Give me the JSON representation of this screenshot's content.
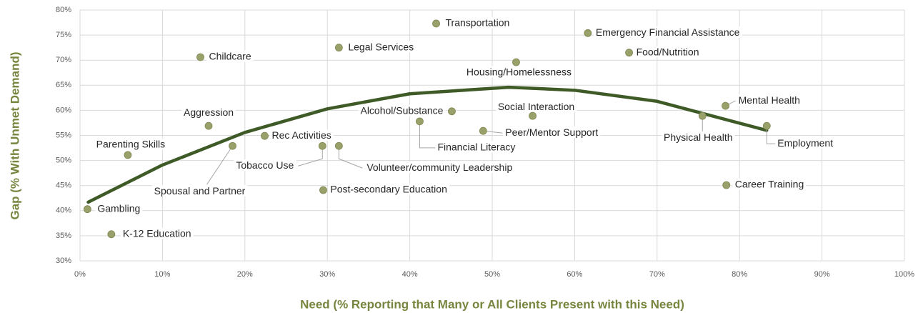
{
  "chart_data": {
    "type": "scatter",
    "x_label": "Need (% Reporting that Many or All Clients Present with this Need)",
    "y_label": "Gap (% With Unmet Demand)",
    "xlim": [
      0,
      100
    ],
    "ylim": [
      30,
      80
    ],
    "xticks": [
      {
        "value": 0,
        "label": "0%"
      },
      {
        "value": 10,
        "label": "10%"
      },
      {
        "value": 20,
        "label": "20%"
      },
      {
        "value": 30,
        "label": "30%"
      },
      {
        "value": 40,
        "label": "40%"
      },
      {
        "value": 50,
        "label": "50%"
      },
      {
        "value": 60,
        "label": "60%"
      },
      {
        "value": 70,
        "label": "70%"
      },
      {
        "value": 80,
        "label": "80%"
      },
      {
        "value": 90,
        "label": "90%"
      },
      {
        "value": 100,
        "label": "100%"
      }
    ],
    "yticks": [
      {
        "value": 30,
        "label": "30%"
      },
      {
        "value": 35,
        "label": "35%"
      },
      {
        "value": 40,
        "label": "40%"
      },
      {
        "value": 45,
        "label": "45%"
      },
      {
        "value": 50,
        "label": "50%"
      },
      {
        "value": 55,
        "label": "55%"
      },
      {
        "value": 60,
        "label": "60%"
      },
      {
        "value": 65,
        "label": "65%"
      },
      {
        "value": 70,
        "label": "70%"
      },
      {
        "value": 75,
        "label": "75%"
      },
      {
        "value": 80,
        "label": "80%"
      }
    ],
    "grid": true,
    "color": "#9aa06a",
    "labels": [
      "Transportation",
      "Emergency Financial Assistance",
      "Food/Nutrition",
      "Legal Services",
      "Childcare",
      "Housing/Homelessness",
      "Mental Health",
      "Alcohol/Substance",
      "Social Interaction",
      "Physical Health",
      "Financial Literacy",
      "Employment",
      "Aggression",
      "Peer/Mentor Support",
      "Rec Activities",
      "Parenting Skills",
      "Spousal and Partner",
      "Tobacco Use",
      "Volunteer/community Leadership",
      "Career Training",
      "Post-secondary Education",
      "Gambling",
      "K-12 Education"
    ],
    "x": [
      43.2,
      61.6,
      66.6,
      31.4,
      14.6,
      52.9,
      78.3,
      45.1,
      54.9,
      75.5,
      41.2,
      83.3,
      15.6,
      48.9,
      22.4,
      5.8,
      18.5,
      29.4,
      31.4,
      78.4,
      29.5,
      0.9,
      3.8
    ],
    "values": [
      77.3,
      75.4,
      71.5,
      72.5,
      70.6,
      69.6,
      60.9,
      59.8,
      58.9,
      58.9,
      57.8,
      56.9,
      56.9,
      55.9,
      54.9,
      51.1,
      52.9,
      52.9,
      52.9,
      45.1,
      44.1,
      40.3,
      35.3
    ],
    "trendline": {
      "color": "#3e5a26",
      "x": [
        1,
        10,
        20,
        30,
        40,
        52,
        60,
        70,
        83.3
      ],
      "values": [
        41.7,
        49.1,
        55.6,
        60.3,
        63.3,
        64.6,
        64.0,
        61.8,
        56.0
      ]
    }
  }
}
